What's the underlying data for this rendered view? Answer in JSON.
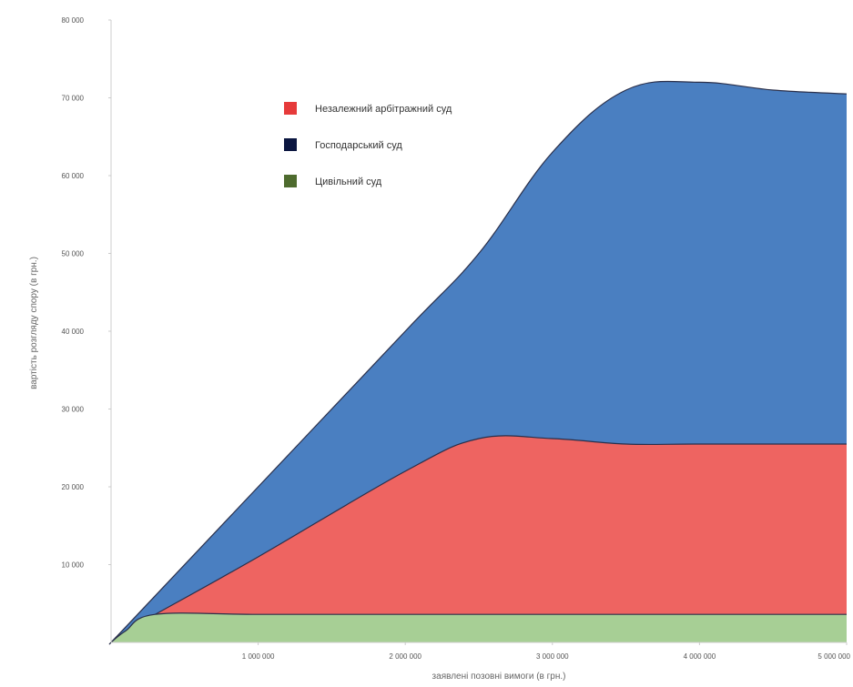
{
  "chart_data": {
    "type": "area",
    "stacked": false,
    "title": "",
    "xlabel": "заявлені позовні вимоги (в грн.)",
    "ylabel": "вартість розгляду спору (в грн.)",
    "xlim": [
      0,
      5000000
    ],
    "ylim": [
      0,
      80000
    ],
    "x_ticks": [
      1000000,
      2000000,
      3000000,
      4000000,
      5000000
    ],
    "x_tick_labels": [
      "1 000 000",
      "2 000 000",
      "3 000 000",
      "4 000 000",
      "5 000 000"
    ],
    "y_ticks": [
      10000,
      20000,
      30000,
      40000,
      50000,
      60000,
      70000,
      80000
    ],
    "y_tick_labels": [
      "10 000",
      "20 000",
      "30 000",
      "40 000",
      "50 000",
      "60 000",
      "70 000",
      "80 000"
    ],
    "legend_position": "top-center",
    "series": [
      {
        "name": "Незалежний арбітражний суд",
        "color": "#4a7fc1",
        "x": [
          0,
          100000,
          1000000,
          2000000,
          2500000,
          3000000,
          3500000,
          4000000,
          4500000,
          5000000
        ],
        "y": [
          0,
          2000,
          20000,
          40000,
          50000,
          63000,
          71000,
          72000,
          71000,
          70500
        ]
      },
      {
        "name": "Господарський суд",
        "color": "#ee6461",
        "x": [
          0,
          100000,
          300000,
          1000000,
          2000000,
          2500000,
          3000000,
          3500000,
          4000000,
          5000000
        ],
        "y": [
          0,
          1500,
          3600,
          11000,
          22000,
          26200,
          26200,
          25500,
          25500,
          25500
        ]
      },
      {
        "name": "Цивільний суд",
        "color": "#a7cf95",
        "x": [
          0,
          100000,
          300000,
          1000000,
          2000000,
          3000000,
          4000000,
          5000000
        ],
        "y": [
          0,
          1500,
          3600,
          3600,
          3600,
          3600,
          3600,
          3600
        ]
      }
    ]
  },
  "legend": {
    "items": [
      {
        "label": "Незалежний арбітражний суд",
        "swatch_color": "#e63a3a"
      },
      {
        "label": "Господарський суд",
        "swatch_color": "#0b1640"
      },
      {
        "label": "Цивільний суд",
        "swatch_color": "#4e6b2e"
      }
    ]
  }
}
